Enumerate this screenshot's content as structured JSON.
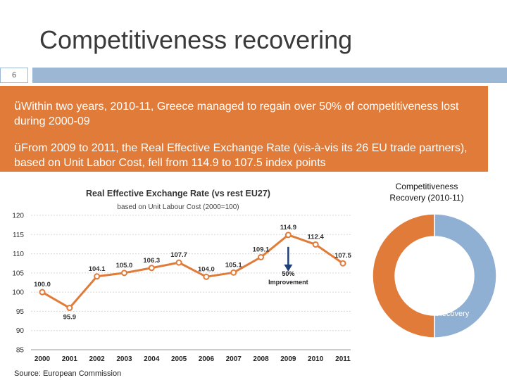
{
  "slide": {
    "title": "Competitiveness recovering",
    "number": "6"
  },
  "bullets": [
    {
      "check": "ü",
      "text": "Within two years, 2010-11, Greece managed to regain over 50% of competitiveness lost during 2000-09"
    },
    {
      "check": "ü",
      "text": "From 2009 to 2011, the Real Effective Exchange Rate (vis-à-vis its 26 EU trade partners), based on Unit Labor Cost, fell from 114.9 to 107.5 index points"
    }
  ],
  "source": "Source: European Commission",
  "colors": {
    "accent_blue": "#9bb7d4",
    "orange": "#e07b39",
    "line": "#e07b39",
    "arrow": "#1f3f78",
    "donut_recovery": "#8fb0d3",
    "donut_rest": "#e07b39"
  },
  "chart_data": [
    {
      "type": "line",
      "title": "Real Effective Exchange Rate (vs rest EU27)",
      "subtitle": "based on Unit Labour Cost (2000=100)",
      "categories": [
        "2000",
        "2001",
        "2002",
        "2003",
        "2004",
        "2005",
        "2006",
        "2007",
        "2008",
        "2009",
        "2010",
        "2011"
      ],
      "values": [
        100.0,
        95.9,
        104.1,
        105.0,
        106.3,
        107.7,
        104.0,
        105.1,
        109.1,
        114.9,
        112.4,
        107.5
      ],
      "data_labels": [
        "100.0",
        "95.9",
        "104.1",
        "105.0",
        "106.3",
        "107.7",
        "104.0",
        "105.1",
        "109.1",
        "114.9",
        "112.4",
        "107.5"
      ],
      "y_ticks": [
        "85",
        "90",
        "95",
        "100",
        "105",
        "110",
        "115",
        "120"
      ],
      "ylim": [
        85,
        120
      ],
      "grid": true,
      "annotation": {
        "value": "50%",
        "label": "Improvement"
      }
    },
    {
      "type": "pie",
      "title": "Competitiveness Recovery (2010-11)",
      "slices": [
        {
          "name": "Recovery",
          "value": 50
        },
        {
          "name": "",
          "value": 50
        }
      ]
    }
  ]
}
